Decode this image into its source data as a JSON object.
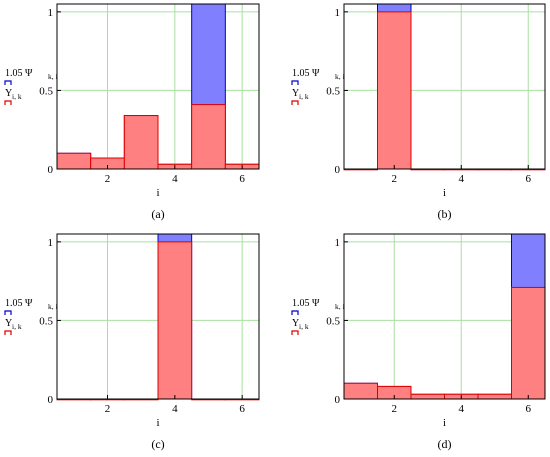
{
  "colors": {
    "psi_fill": "#8080ff",
    "psi_stroke": "#0000cc",
    "y_fill": "#ff8080",
    "y_stroke": "#dd0000",
    "grid": "#a8e0a0",
    "axis": "#000000"
  },
  "chart_data": [
    {
      "type": "bar",
      "panel_label": "(a)",
      "xlabel": "i",
      "ylabel_lines": [
        "1.05 Ψ",
        "k, i",
        "Y",
        "i, k"
      ],
      "xlim": [
        0.5,
        6.5
      ],
      "ylim": [
        0,
        1.05
      ],
      "xticks": [
        2,
        4,
        6
      ],
      "yticks": [
        0,
        0.5,
        1
      ],
      "categories": [
        1,
        2,
        3,
        4,
        5,
        6
      ],
      "grid": true,
      "series": [
        {
          "name": "1.05 Ψ k,i",
          "values": [
            0.1,
            0.07,
            0.34,
            0.03,
            1.05,
            0.03
          ]
        },
        {
          "name": "Y i,k",
          "values": [
            0.1,
            0.07,
            0.34,
            0.03,
            0.41,
            0.03
          ]
        }
      ]
    },
    {
      "type": "bar",
      "panel_label": "(b)",
      "xlabel": "i",
      "ylabel_lines": [
        "1.05 Ψ",
        "k, i",
        "Y",
        "i, k"
      ],
      "xlim": [
        0.5,
        6.5
      ],
      "ylim": [
        0,
        1.05
      ],
      "xticks": [
        2,
        4,
        6
      ],
      "yticks": [
        0,
        0.5,
        1
      ],
      "categories": [
        1,
        2,
        3,
        4,
        5,
        6
      ],
      "grid": true,
      "series": [
        {
          "name": "1.05 Ψ k,i",
          "values": [
            0,
            1.05,
            0,
            0,
            0,
            0
          ]
        },
        {
          "name": "Y i,k",
          "values": [
            0,
            1.0,
            0,
            0,
            0,
            0
          ]
        }
      ]
    },
    {
      "type": "bar",
      "panel_label": "(c)",
      "xlabel": "i",
      "ylabel_lines": [
        "1.05 Ψ",
        "k, i",
        "Y",
        "i, k"
      ],
      "xlim": [
        0.5,
        6.5
      ],
      "ylim": [
        0,
        1.05
      ],
      "xticks": [
        2,
        4,
        6
      ],
      "yticks": [
        0,
        0.5,
        1
      ],
      "categories": [
        1,
        2,
        3,
        4,
        5,
        6
      ],
      "grid": true,
      "series": [
        {
          "name": "1.05 Ψ k,i",
          "values": [
            0,
            0,
            0,
            1.05,
            0,
            0
          ]
        },
        {
          "name": "Y i,k",
          "values": [
            0,
            0,
            0,
            1.0,
            0,
            0
          ]
        }
      ]
    },
    {
      "type": "bar",
      "panel_label": "(d)",
      "xlabel": "i",
      "ylabel_lines": [
        "1.05 Ψ",
        "k, i",
        "Y",
        "i, k"
      ],
      "xlim": [
        0.5,
        6.5
      ],
      "ylim": [
        0,
        1.05
      ],
      "xticks": [
        2,
        4,
        6
      ],
      "yticks": [
        0,
        0.5,
        1
      ],
      "categories": [
        1,
        2,
        3,
        4,
        5,
        6
      ],
      "grid": true,
      "series": [
        {
          "name": "1.05 Ψ k,i",
          "values": [
            0.1,
            0.08,
            0.03,
            0.03,
            0.03,
            1.05
          ]
        },
        {
          "name": "Y i,k",
          "values": [
            0.1,
            0.08,
            0.03,
            0.03,
            0.03,
            0.71
          ]
        }
      ]
    }
  ]
}
